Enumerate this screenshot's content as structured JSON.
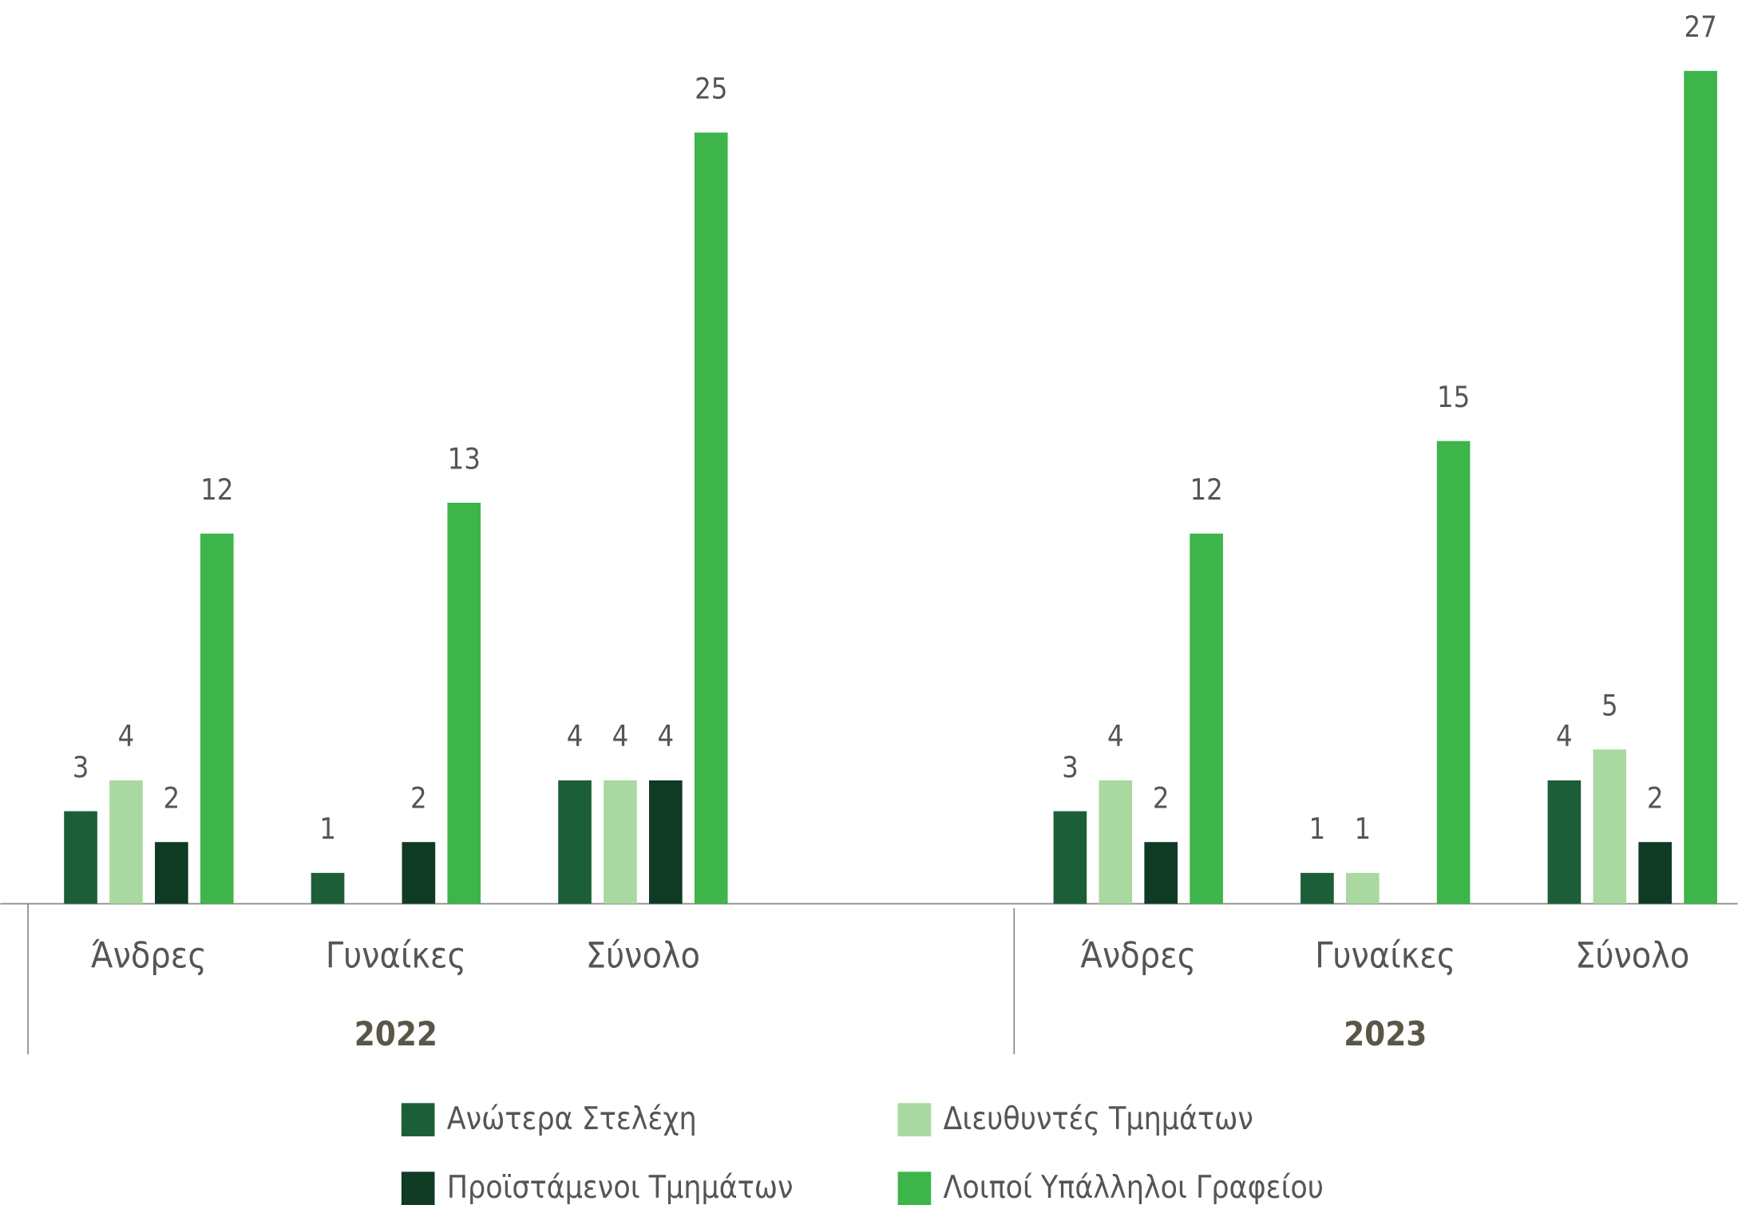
{
  "chart_data": {
    "type": "bar",
    "categories": [
      "Άνδρες",
      "Γυναίκες",
      "Σύνολο",
      "Άνδρες",
      "Γυναίκες",
      "Σύνολο"
    ],
    "groups": [
      "2022",
      "2023"
    ],
    "series": [
      {
        "name": "Ανώτερα Στελέχη",
        "color": "#1b5e38",
        "values": [
          3,
          1,
          4,
          3,
          1,
          4
        ]
      },
      {
        "name": "Διευθυντές Τμημάτων",
        "color": "#a9d9a0",
        "values": [
          4,
          null,
          4,
          4,
          1,
          5
        ]
      },
      {
        "name": "Προϊστάμενοι Τμημάτων",
        "color": "#0f3a23",
        "values": [
          2,
          2,
          4,
          2,
          null,
          2
        ]
      },
      {
        "name": "Λοιποί Υπάλληλοι Γραφείου",
        "color": "#3db54a",
        "values": [
          12,
          13,
          25,
          12,
          15,
          27
        ]
      }
    ],
    "value_labels": true,
    "legend": "bottom"
  }
}
